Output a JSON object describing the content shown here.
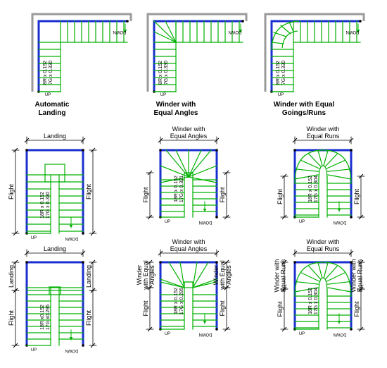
{
  "colors": {
    "stair": "#00b000",
    "wall": "#1a2fd0",
    "frame": "#9a9a9a",
    "dim": "#000000"
  },
  "labels": {
    "up": "UP",
    "down": "DOWN",
    "flight": "Flight",
    "landing": "Landing",
    "winder_equal_angles_2": [
      "Winder with",
      "Equal Angles"
    ],
    "winder_equal_runs_2": [
      "Winder with",
      "Equal Runs"
    ],
    "winder_equal_angles_3": [
      "Winder",
      "with Equal",
      "Angles"
    ],
    "winder_equal_runs_2b": [
      "Winder with",
      "Equal Runs"
    ]
  },
  "captions": {
    "automatic_landing": "Automatic\nLanding",
    "winder_equal_angles": "Winder with\nEqual Angles",
    "winder_equal_goings": "Winder with Equal\nGoings/Runs"
  },
  "notes": {
    "l1": [
      "8R x 0.152",
      "7G x 0.330"
    ],
    "l2": [
      "8R x 0.152",
      "7G x 0.330"
    ],
    "l3": [
      "8R x 0.152",
      "7G x 0.330"
    ],
    "u1": [
      "18R x 0.152",
      "17G x 0.330"
    ],
    "u2": [
      "18R x 0.152",
      "17G x 0.321"
    ],
    "u3": [
      "18R x 0.152",
      "17G x 0.304"
    ],
    "u4": [
      "18R x0.152",
      "17G x0.295"
    ],
    "u5": [
      "18R x 0.152",
      "17G x 0.295"
    ],
    "u6": [
      "18R x 0.152",
      "17G x 0.304"
    ]
  }
}
